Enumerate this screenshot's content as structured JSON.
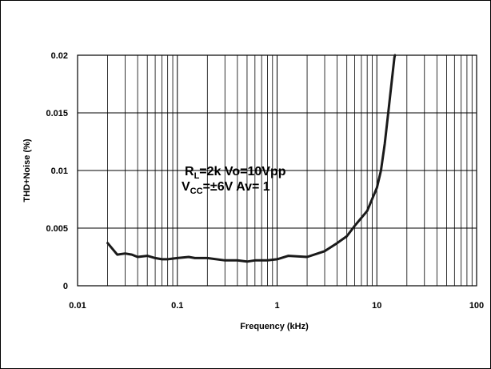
{
  "chart_data": {
    "type": "line",
    "xlabel": "Frequency (kHz)",
    "ylabel": "THD+Noise (%)",
    "x_scale": "log",
    "xlim": [
      0.01,
      100
    ],
    "ylim": [
      0,
      0.02
    ],
    "x_ticks": [
      {
        "value": 0.01,
        "label": "0.01"
      },
      {
        "value": 0.1,
        "label": "0.1"
      },
      {
        "value": 1,
        "label": "1"
      },
      {
        "value": 10,
        "label": "10"
      },
      {
        "value": 100,
        "label": "100"
      }
    ],
    "y_ticks": [
      {
        "value": 0,
        "label": "0"
      },
      {
        "value": 0.005,
        "label": "0.005"
      },
      {
        "value": 0.01,
        "label": "0.01"
      },
      {
        "value": 0.015,
        "label": "0.015"
      },
      {
        "value": 0.02,
        "label": "0.02"
      }
    ],
    "grid": true,
    "annotation": {
      "line1": {
        "main": "R",
        "sub": "L",
        "rest": "=2k  Vo=10Vpp"
      },
      "line2": {
        "main": "V",
        "sub": "CC",
        "rest": "=±6V  Av= 1"
      }
    },
    "series": [
      {
        "color": "#1a1a1a",
        "points": [
          [
            0.02,
            0.0037
          ],
          [
            0.025,
            0.0027
          ],
          [
            0.03,
            0.0028
          ],
          [
            0.035,
            0.0027
          ],
          [
            0.04,
            0.0025
          ],
          [
            0.05,
            0.0026
          ],
          [
            0.06,
            0.0024
          ],
          [
            0.07,
            0.0023
          ],
          [
            0.08,
            0.0023
          ],
          [
            0.1,
            0.0024
          ],
          [
            0.13,
            0.0025
          ],
          [
            0.15,
            0.0024
          ],
          [
            0.2,
            0.0024
          ],
          [
            0.3,
            0.0022
          ],
          [
            0.4,
            0.0022
          ],
          [
            0.5,
            0.0021
          ],
          [
            0.6,
            0.0022
          ],
          [
            0.8,
            0.0022
          ],
          [
            1,
            0.0023
          ],
          [
            1.3,
            0.0026
          ],
          [
            2,
            0.0025
          ],
          [
            3,
            0.003
          ],
          [
            4,
            0.0037
          ],
          [
            5,
            0.0043
          ],
          [
            6,
            0.0052
          ],
          [
            8,
            0.0065
          ],
          [
            10,
            0.0085
          ],
          [
            11,
            0.01
          ],
          [
            12,
            0.0123
          ],
          [
            13,
            0.015
          ],
          [
            14,
            0.0175
          ],
          [
            15,
            0.0198
          ],
          [
            15.2,
            0.02
          ]
        ]
      }
    ]
  }
}
